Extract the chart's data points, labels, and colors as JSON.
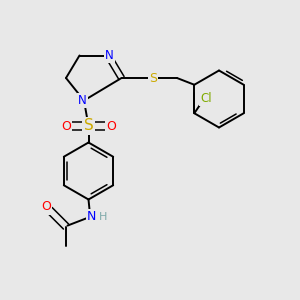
{
  "bg_color": "#e8e8e8",
  "atom_colors": {
    "N": "#0000ff",
    "O": "#ff0000",
    "S": "#ccaa00",
    "Cl": "#7faa00",
    "H": "#7faaaa"
  },
  "bond_color": "#000000",
  "figsize": [
    3.0,
    3.0
  ],
  "dpi": 100
}
